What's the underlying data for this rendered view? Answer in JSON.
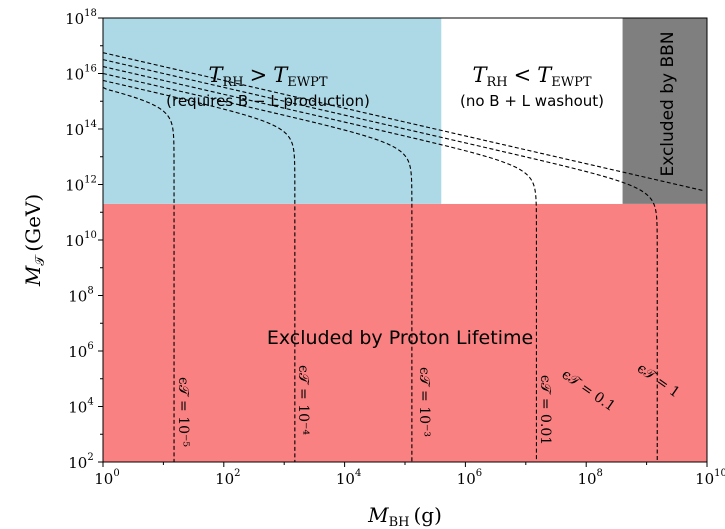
{
  "chart_data": {
    "type": "line",
    "x_scale": "log",
    "y_scale": "log",
    "xlim": [
      1,
      10000000000
    ],
    "ylim": [
      100,
      1000000000000000000
    ],
    "xlabel": "M_BH (g)",
    "ylabel": "M_T (GeV)",
    "grid": false,
    "x_ticks": [
      {
        "base": "10",
        "exp": "0",
        "value": 1
      },
      {
        "base": "10",
        "exp": "2",
        "value": 100
      },
      {
        "base": "10",
        "exp": "4",
        "value": 10000
      },
      {
        "base": "10",
        "exp": "6",
        "value": 1000000
      },
      {
        "base": "10",
        "exp": "8",
        "value": 100000000
      },
      {
        "base": "10",
        "exp": "10",
        "value": 10000000000
      }
    ],
    "y_ticks": [
      {
        "base": "10",
        "exp": "2",
        "value": 100
      },
      {
        "base": "10",
        "exp": "4",
        "value": 10000
      },
      {
        "base": "10",
        "exp": "6",
        "value": 1000000
      },
      {
        "base": "10",
        "exp": "8",
        "value": 100000000
      },
      {
        "base": "10",
        "exp": "10",
        "value": 10000000000
      },
      {
        "base": "10",
        "exp": "12",
        "value": 1000000000000
      },
      {
        "base": "10",
        "exp": "14",
        "value": 100000000000000
      },
      {
        "base": "10",
        "exp": "16",
        "value": 10000000000000000
      },
      {
        "base": "10",
        "exp": "18",
        "value": 1000000000000000000
      }
    ],
    "regions": [
      {
        "label": "Excluded by Proton Lifetime",
        "x_range": [
          1,
          10000000000
        ],
        "y_range": [
          100,
          200000000000
        ],
        "color": "#f98181"
      },
      {
        "label": "T_RH > T_EWPT",
        "sublabel": "(requires B − L production)",
        "x_range": [
          1,
          400000
        ],
        "y_range": [
          200000000000,
          1000000000000000000
        ],
        "color": "#add8e6"
      },
      {
        "label": "T_RH < T_EWPT",
        "sublabel": "(no B + L washout)",
        "x_range": [
          400000,
          400000000
        ],
        "y_range": [
          200000000000,
          1000000000000000000
        ],
        "color": "#ffffff"
      },
      {
        "label": "Excluded by BBN",
        "x_range": [
          400000000,
          10000000000
        ],
        "y_range": [
          200000000000,
          1000000000000000000
        ],
        "color": "#7f7f7f"
      }
    ],
    "series": [
      {
        "name": "ϵ_T = 10^−5",
        "epsilon": 1e-05,
        "x_vertical": 15,
        "log_y_at_x1": 15.5
      },
      {
        "name": "ϵ_T = 10^−4",
        "epsilon": 0.0001,
        "x_vertical": 1500,
        "log_y_at_x1": 15.75
      },
      {
        "name": "ϵ_T = 10^−3",
        "epsilon": 0.001,
        "x_vertical": 130000,
        "log_y_at_x1": 16.0
      },
      {
        "name": "ϵ_T = 0.01",
        "epsilon": 0.01,
        "x_vertical": 15000000,
        "log_y_at_x1": 16.25
      },
      {
        "name": "ϵ_T = 0.1",
        "epsilon": 0.1,
        "x_vertical": 1500000000,
        "log_y_at_x1": 16.5
      },
      {
        "name": "ϵ_T = 1",
        "epsilon": 1,
        "x_vertical": null,
        "log_y_at_x1": 16.75
      }
    ]
  },
  "labels": {
    "x_axis_main": "M",
    "x_axis_sub": "BH",
    "x_axis_unit": "(g)",
    "y_axis_main": "M",
    "y_axis_sub": "𝒯",
    "y_axis_unit": "(GeV)",
    "region_blue_main_left": "T",
    "region_blue_main_left_sub": "RH",
    "region_blue_op": ">",
    "region_blue_main_right": "T",
    "region_blue_main_right_sub": "EWPT",
    "region_blue_sub": "(requires B − L production)",
    "region_white_main_left": "T",
    "region_white_main_left_sub": "RH",
    "region_white_op": "<",
    "region_white_main_right": "T",
    "region_white_main_right_sub": "EWPT",
    "region_white_sub": "(no B + L washout)",
    "region_red": "Excluded by Proton Lifetime",
    "region_grey": "Excluded by BBN",
    "curve_1": "ϵ𝒯 = 10⁻⁵",
    "curve_2": "ϵ𝒯 = 10⁻⁴",
    "curve_3": "ϵ𝒯 = 10⁻³",
    "curve_4": "ϵ𝒯 = 0.01",
    "curve_5": "ϵ𝒯 = 0.1",
    "curve_6": "ϵ𝒯 = 1"
  }
}
